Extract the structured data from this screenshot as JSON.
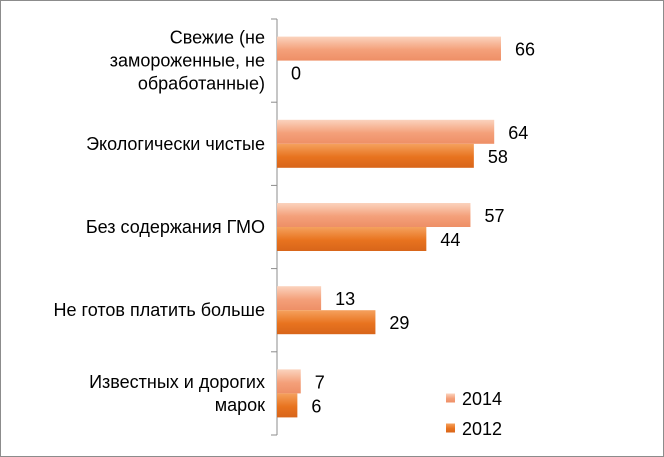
{
  "chart_data": {
    "type": "bar",
    "orientation": "horizontal",
    "categories": [
      [
        "Свежие (не",
        "замороженные, не",
        "обработанные)"
      ],
      [
        "Экологически чистые"
      ],
      [
        "Без содержания ГМО"
      ],
      [
        "Не готов платить больше"
      ],
      [
        "Известных и дорогих",
        "марок"
      ]
    ],
    "series": [
      {
        "name": "2014",
        "values": [
          66,
          64,
          57,
          13,
          7
        ],
        "color": "#F4A07A",
        "color_light": "#FBD3BE"
      },
      {
        "name": "2012",
        "values": [
          0,
          58,
          44,
          29,
          6
        ],
        "color": "#E8731F",
        "color_light": "#F5A15E"
      }
    ],
    "xlim": [
      0,
      70
    ],
    "grid": false,
    "legend_position": "bottom-right"
  }
}
